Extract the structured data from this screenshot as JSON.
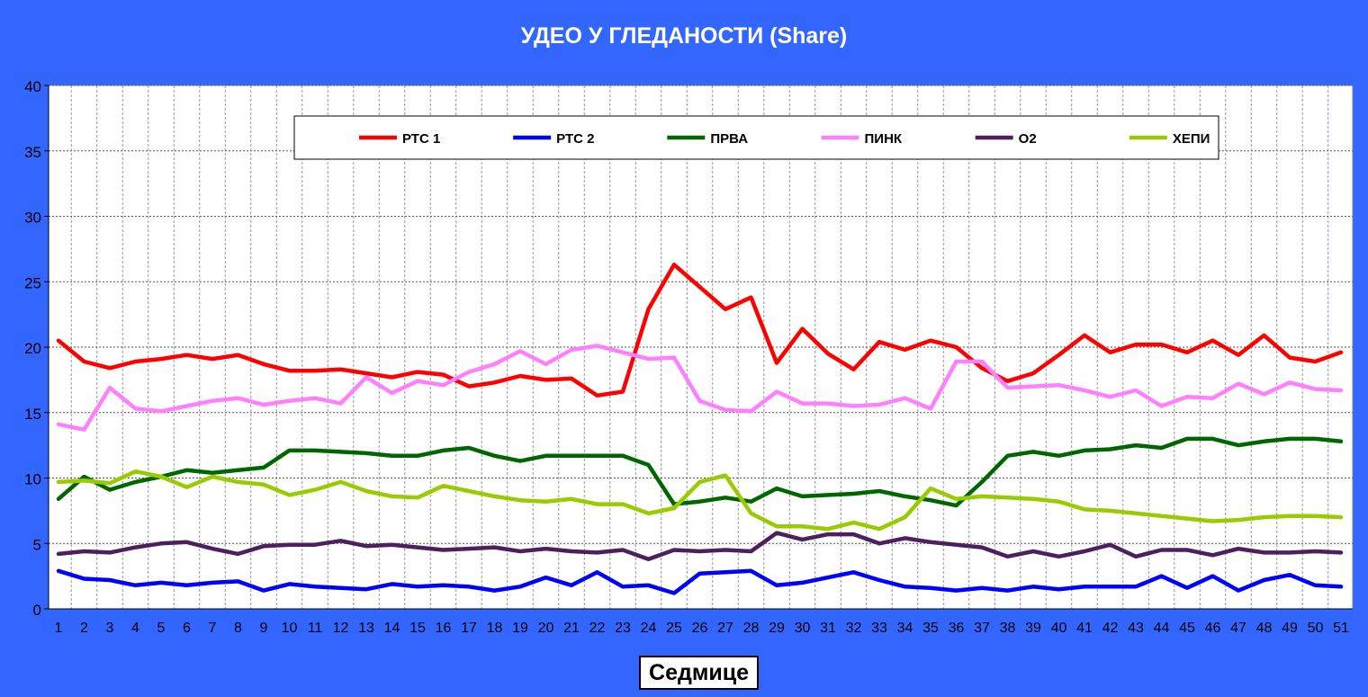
{
  "chart_data": {
    "type": "line",
    "title": "УДЕО У ГЛЕДАНОСТИ (Share)",
    "xlabel": "Седмице",
    "ylabel": "",
    "ylim": [
      0,
      40
    ],
    "yticks": [
      0,
      5,
      10,
      15,
      20,
      25,
      30,
      35,
      40
    ],
    "x": [
      1,
      2,
      3,
      4,
      5,
      6,
      7,
      8,
      9,
      10,
      11,
      12,
      13,
      14,
      15,
      16,
      17,
      18,
      19,
      20,
      21,
      22,
      23,
      24,
      25,
      26,
      27,
      28,
      29,
      30,
      31,
      32,
      33,
      34,
      35,
      36,
      37,
      38,
      39,
      40,
      41,
      42,
      43,
      44,
      45,
      46,
      47,
      48,
      49,
      50,
      51
    ],
    "grid": true,
    "legend_position": "top",
    "series": [
      {
        "name": "РТС 1",
        "color": "#ff0000",
        "values": [
          20.5,
          18.9,
          18.4,
          18.9,
          19.1,
          19.4,
          19.1,
          19.4,
          18.7,
          18.2,
          18.2,
          18.3,
          18.0,
          17.7,
          18.1,
          17.9,
          17.0,
          17.3,
          17.8,
          17.5,
          17.6,
          16.3,
          16.6,
          22.9,
          26.3,
          24.6,
          22.9,
          23.8,
          18.8,
          21.4,
          19.5,
          18.3,
          20.4,
          19.8,
          20.5,
          20.0,
          18.4,
          17.4,
          18.0,
          19.4,
          20.9,
          19.6,
          20.2,
          20.2,
          19.6,
          20.5,
          19.4,
          20.9,
          19.2,
          18.9,
          19.6
        ]
      },
      {
        "name": "РТС 2",
        "color": "#0000ff",
        "values": [
          2.9,
          2.3,
          2.2,
          1.8,
          2.0,
          1.8,
          2.0,
          2.1,
          1.4,
          1.9,
          1.7,
          1.6,
          1.5,
          1.9,
          1.7,
          1.8,
          1.7,
          1.4,
          1.7,
          2.4,
          1.8,
          2.8,
          1.7,
          1.8,
          1.2,
          2.7,
          2.8,
          2.9,
          1.8,
          2.0,
          2.4,
          2.8,
          2.2,
          1.7,
          1.6,
          1.4,
          1.6,
          1.4,
          1.7,
          1.5,
          1.7,
          1.7,
          1.7,
          2.5,
          1.6,
          2.5,
          1.4,
          2.2,
          2.6,
          1.8,
          1.7
        ]
      },
      {
        "name": "ПРВА",
        "color": "#006600",
        "values": [
          8.4,
          10.1,
          9.1,
          9.7,
          10.1,
          10.6,
          10.4,
          10.6,
          10.8,
          12.1,
          12.1,
          12.0,
          11.9,
          11.7,
          11.7,
          12.1,
          12.3,
          11.7,
          11.3,
          11.7,
          11.7,
          11.7,
          11.7,
          11.0,
          8.0,
          8.2,
          8.5,
          8.2,
          9.2,
          8.6,
          8.7,
          8.8,
          9.0,
          8.6,
          8.3,
          7.9,
          9.7,
          11.7,
          12.0,
          11.7,
          12.1,
          12.2,
          12.5,
          12.3,
          13.0,
          13.0,
          12.5,
          12.8,
          13.0,
          13.0,
          12.8
        ]
      },
      {
        "name": "ПИНК",
        "color": "#ff80ff",
        "values": [
          14.1,
          13.7,
          16.9,
          15.3,
          15.1,
          15.5,
          15.9,
          16.1,
          15.6,
          15.9,
          16.1,
          15.7,
          17.7,
          16.5,
          17.4,
          17.1,
          18.1,
          18.7,
          19.7,
          18.7,
          19.8,
          20.1,
          19.6,
          19.1,
          19.2,
          15.9,
          15.2,
          15.1,
          16.6,
          15.7,
          15.7,
          15.5,
          15.6,
          16.1,
          15.3,
          18.9,
          18.9,
          16.9,
          17.0,
          17.1,
          16.7,
          16.2,
          16.7,
          15.5,
          16.2,
          16.1,
          17.2,
          16.4,
          17.3,
          16.8,
          16.7
        ]
      },
      {
        "name": "О2",
        "color": "#4d1f5e",
        "values": [
          4.2,
          4.4,
          4.3,
          4.7,
          5.0,
          5.1,
          4.6,
          4.2,
          4.8,
          4.9,
          4.9,
          5.2,
          4.8,
          4.9,
          4.7,
          4.5,
          4.6,
          4.7,
          4.4,
          4.6,
          4.4,
          4.3,
          4.5,
          3.8,
          4.5,
          4.4,
          4.5,
          4.4,
          5.8,
          5.3,
          5.7,
          5.7,
          5.0,
          5.4,
          5.1,
          4.9,
          4.7,
          4.0,
          4.4,
          4.0,
          4.4,
          4.9,
          4.0,
          4.5,
          4.5,
          4.1,
          4.6,
          4.3,
          4.3,
          4.4,
          4.3
        ]
      },
      {
        "name": "ХЕПИ",
        "color": "#99cc00",
        "values": [
          9.7,
          9.8,
          9.6,
          10.5,
          10.1,
          9.3,
          10.1,
          9.7,
          9.5,
          8.7,
          9.1,
          9.7,
          9.0,
          8.6,
          8.5,
          9.4,
          9.0,
          8.6,
          8.3,
          8.2,
          8.4,
          8.0,
          8.0,
          7.3,
          7.7,
          9.7,
          10.2,
          7.3,
          6.3,
          6.3,
          6.1,
          6.6,
          6.1,
          7.0,
          9.2,
          8.4,
          8.6,
          8.5,
          8.4,
          8.2,
          7.6,
          7.5,
          7.3,
          7.1,
          6.9,
          6.7,
          6.8,
          7.0,
          7.1,
          7.1,
          7.0
        ]
      }
    ]
  }
}
